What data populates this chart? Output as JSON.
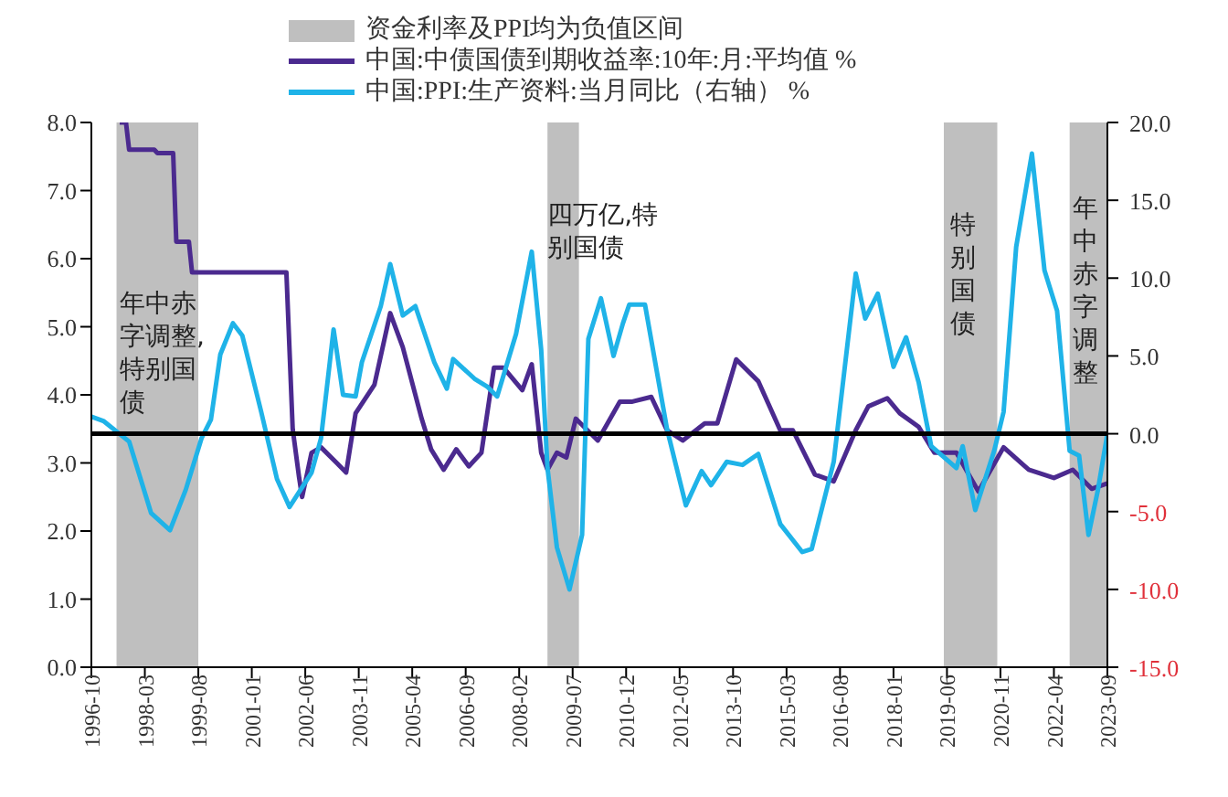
{
  "chart_data": {
    "type": "line",
    "legend": "top",
    "xlim": [
      "1996-10",
      "2023-09"
    ],
    "xticks": [
      "1996-10",
      "1998-03",
      "1999-08",
      "2001-01",
      "2002-06",
      "2003-11",
      "2005-04",
      "2006-09",
      "2008-02",
      "2009-07",
      "2010-12",
      "2012-05",
      "2013-10",
      "2015-03",
      "2016-08",
      "2018-01",
      "2019-06",
      "2020-11",
      "2022-04",
      "2023-09"
    ],
    "ylim": [
      0,
      8
    ],
    "yticks": [
      {
        "value": 0,
        "label": "0.0"
      },
      {
        "value": 1,
        "label": "1.0"
      },
      {
        "value": 2,
        "label": "2.0"
      },
      {
        "value": 3,
        "label": "3.0"
      },
      {
        "value": 4,
        "label": "4.0"
      },
      {
        "value": 5,
        "label": "5.0"
      },
      {
        "value": 6,
        "label": "6.0"
      },
      {
        "value": 7,
        "label": "7.0"
      },
      {
        "value": 8,
        "label": "8.0"
      }
    ],
    "y2lim": [
      -15,
      20
    ],
    "y2ticks": [
      {
        "value": -15,
        "label": "-15.0"
      },
      {
        "value": -10,
        "label": "-10.0"
      },
      {
        "value": -5,
        "label": "-5.0"
      },
      {
        "value": 0,
        "label": "0.0"
      },
      {
        "value": 5,
        "label": "5.0"
      },
      {
        "value": 10,
        "label": "10.0"
      },
      {
        "value": 15,
        "label": "15.0"
      },
      {
        "value": 20,
        "label": "20.0"
      }
    ],
    "series": [
      {
        "name": "中国:中债国债到期收益率:10年:月:平均值 %",
        "color": "#4b2a8f",
        "x": [
          "1997-07",
          "1997-09",
          "1997-10",
          "1998-06",
          "1998-07",
          "1998-12",
          "1999-01",
          "1999-05",
          "1999-06",
          "2001-12",
          "2002-02",
          "2002-04",
          "2002-05",
          "2002-08",
          "2002-11",
          "2003-04",
          "2003-07",
          "2003-10",
          "2004-04",
          "2004-09",
          "2005-01",
          "2005-07",
          "2005-10",
          "2006-02",
          "2006-06",
          "2006-10",
          "2007-02",
          "2007-06",
          "2007-09",
          "2008-03",
          "2008-06",
          "2008-09",
          "2008-11",
          "2009-02",
          "2009-05",
          "2009-08",
          "2010-03",
          "2010-10",
          "2011-02",
          "2011-08",
          "2012-01",
          "2012-06",
          "2013-01",
          "2013-05",
          "2013-11",
          "2014-06",
          "2015-01",
          "2015-05",
          "2015-12",
          "2016-06",
          "2017-01",
          "2017-05",
          "2017-11",
          "2018-03",
          "2018-09",
          "2019-02",
          "2019-09",
          "2020-04",
          "2020-12",
          "2021-08",
          "2022-04",
          "2022-10",
          "2023-04",
          "2023-09"
        ],
        "values": [
          8.0,
          8.0,
          7.6,
          7.6,
          7.55,
          7.55,
          6.25,
          6.25,
          5.8,
          5.8,
          3.5,
          2.8,
          2.5,
          3.15,
          3.23,
          3.0,
          2.86,
          3.73,
          4.15,
          5.2,
          4.7,
          3.65,
          3.2,
          2.9,
          3.2,
          2.95,
          3.15,
          4.4,
          4.4,
          4.07,
          4.45,
          3.15,
          2.9,
          3.15,
          3.08,
          3.65,
          3.33,
          3.9,
          3.9,
          3.97,
          3.48,
          3.33,
          3.58,
          3.58,
          4.52,
          4.2,
          3.48,
          3.48,
          2.83,
          2.73,
          3.48,
          3.83,
          3.95,
          3.73,
          3.53,
          3.15,
          3.15,
          2.58,
          3.23,
          2.9,
          2.78,
          2.9,
          2.62,
          2.7
        ]
      },
      {
        "name": "中国:PPI:生产资料:当月同比（右轴） %",
        "color": "#1fb3e8",
        "axis": "y2",
        "x": [
          "1996-10",
          "1997-02",
          "1997-10",
          "1998-05",
          "1998-11",
          "1999-04",
          "1999-09",
          "1999-12",
          "2000-03",
          "2000-07",
          "2000-10",
          "2001-04",
          "2001-09",
          "2002-01",
          "2002-08",
          "2002-11",
          "2003-03",
          "2003-06",
          "2003-10",
          "2003-12",
          "2004-06",
          "2004-09",
          "2005-01",
          "2005-05",
          "2005-11",
          "2006-03",
          "2006-05",
          "2006-12",
          "2007-04",
          "2007-07",
          "2008-01",
          "2008-06",
          "2008-09",
          "2008-11",
          "2009-02",
          "2009-06",
          "2009-10",
          "2009-12",
          "2010-04",
          "2010-08",
          "2010-11",
          "2011-01",
          "2011-06",
          "2012-01",
          "2012-07",
          "2012-12",
          "2013-03",
          "2013-08",
          "2014-01",
          "2014-06",
          "2015-01",
          "2015-08",
          "2015-11",
          "2016-06",
          "2017-01",
          "2017-04",
          "2017-08",
          "2018-01",
          "2018-05",
          "2018-09",
          "2019-01",
          "2019-09",
          "2019-11",
          "2020-03",
          "2020-09",
          "2020-12",
          "2021-04",
          "2021-09",
          "2022-01",
          "2022-05",
          "2022-09",
          "2022-12",
          "2023-03",
          "2023-06",
          "2023-09"
        ],
        "values": [
          1.1,
          0.8,
          -0.5,
          -5.1,
          -6.2,
          -3.6,
          -0.3,
          0.9,
          5.1,
          7.1,
          6.3,
          1.4,
          -2.9,
          -4.7,
          -2.5,
          -0.3,
          6.7,
          2.5,
          2.4,
          4.6,
          8.2,
          10.9,
          7.6,
          8.2,
          4.6,
          2.9,
          4.8,
          3.5,
          3.0,
          2.4,
          6.4,
          11.7,
          5.4,
          -2.2,
          -7.3,
          -10.0,
          -6.5,
          6.1,
          8.7,
          5.0,
          7.1,
          8.3,
          8.3,
          0.3,
          -4.6,
          -2.4,
          -3.3,
          -1.8,
          -2.0,
          -1.3,
          -5.8,
          -7.6,
          -7.4,
          -1.8,
          10.3,
          7.4,
          9.0,
          4.3,
          6.2,
          3.3,
          -0.8,
          -2.2,
          -0.8,
          -4.9,
          -1.1,
          1.4,
          12.0,
          18.0,
          10.5,
          7.9,
          -1.1,
          -1.4,
          -6.5,
          -3.6,
          0.0
        ]
      }
    ],
    "bands": [
      {
        "axis": "x",
        "from": "1997-06",
        "to": "1999-08",
        "color": "#bfbfbf",
        "label": "资金利率及PPI均为负值区间"
      },
      {
        "axis": "x",
        "from": "2008-11",
        "to": "2009-09",
        "color": "#bfbfbf"
      },
      {
        "axis": "x",
        "from": "2019-05",
        "to": "2020-10",
        "color": "#bfbfbf"
      },
      {
        "axis": "x",
        "from": "2022-09",
        "to": "2023-09",
        "color": "#bfbfbf"
      }
    ],
    "ref_lines": [
      {
        "axis": "y2",
        "value": 0,
        "color": "#000000"
      }
    ],
    "annotations": [
      {
        "text": "年中赤字调整,特别国债",
        "x": "1997-07",
        "y": 5.6
      },
      {
        "text": "四万亿,特别国债",
        "x": "2008-11",
        "y": 6.9
      },
      {
        "text": "特别国债",
        "x": "2019-07",
        "y": 6.75
      },
      {
        "text": "年中赤字调整",
        "x": "2022-10",
        "y": 7.0
      }
    ]
  }
}
